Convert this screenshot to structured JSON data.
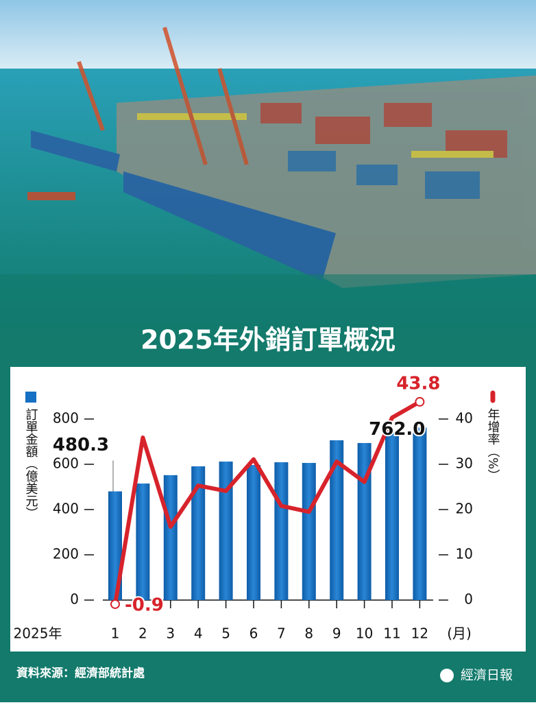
{
  "chart_data": {
    "type": "bar-line",
    "title": "2025年外銷訂單概況",
    "year_label": "2025年",
    "xlabel": "(月)",
    "categories": [
      "1",
      "2",
      "3",
      "4",
      "5",
      "6",
      "7",
      "8",
      "9",
      "10",
      "11",
      "12"
    ],
    "series": [
      {
        "name": "訂單金額（億美元）",
        "color": "#1670c4",
        "axis": "y",
        "values": [
          480.3,
          515,
          552,
          591,
          612,
          597,
          609,
          606,
          706,
          694,
          739,
          762.0
        ],
        "value_labels": [
          "480.3",
          null,
          null,
          null,
          null,
          null,
          null,
          null,
          null,
          null,
          null,
          "762.0"
        ]
      },
      {
        "name": "年增率（%）",
        "color": "#d7232b",
        "axis": "y2",
        "values": [
          -0.9,
          35.9,
          16.2,
          25.3,
          24.1,
          31.1,
          20.8,
          19.5,
          30.6,
          26.1,
          40.3,
          43.8
        ],
        "value_labels": [
          "-0.9",
          null,
          null,
          null,
          null,
          null,
          null,
          null,
          null,
          null,
          null,
          "43.8"
        ]
      }
    ],
    "ylim": [
      0,
      800
    ],
    "yticks": [
      0,
      200,
      400,
      600,
      800
    ],
    "y2lim": [
      0,
      40
    ],
    "y2ticks": [
      0,
      10,
      20,
      30,
      40
    ],
    "source": "資料來源：經濟部統計處",
    "brand": "經濟日報"
  }
}
